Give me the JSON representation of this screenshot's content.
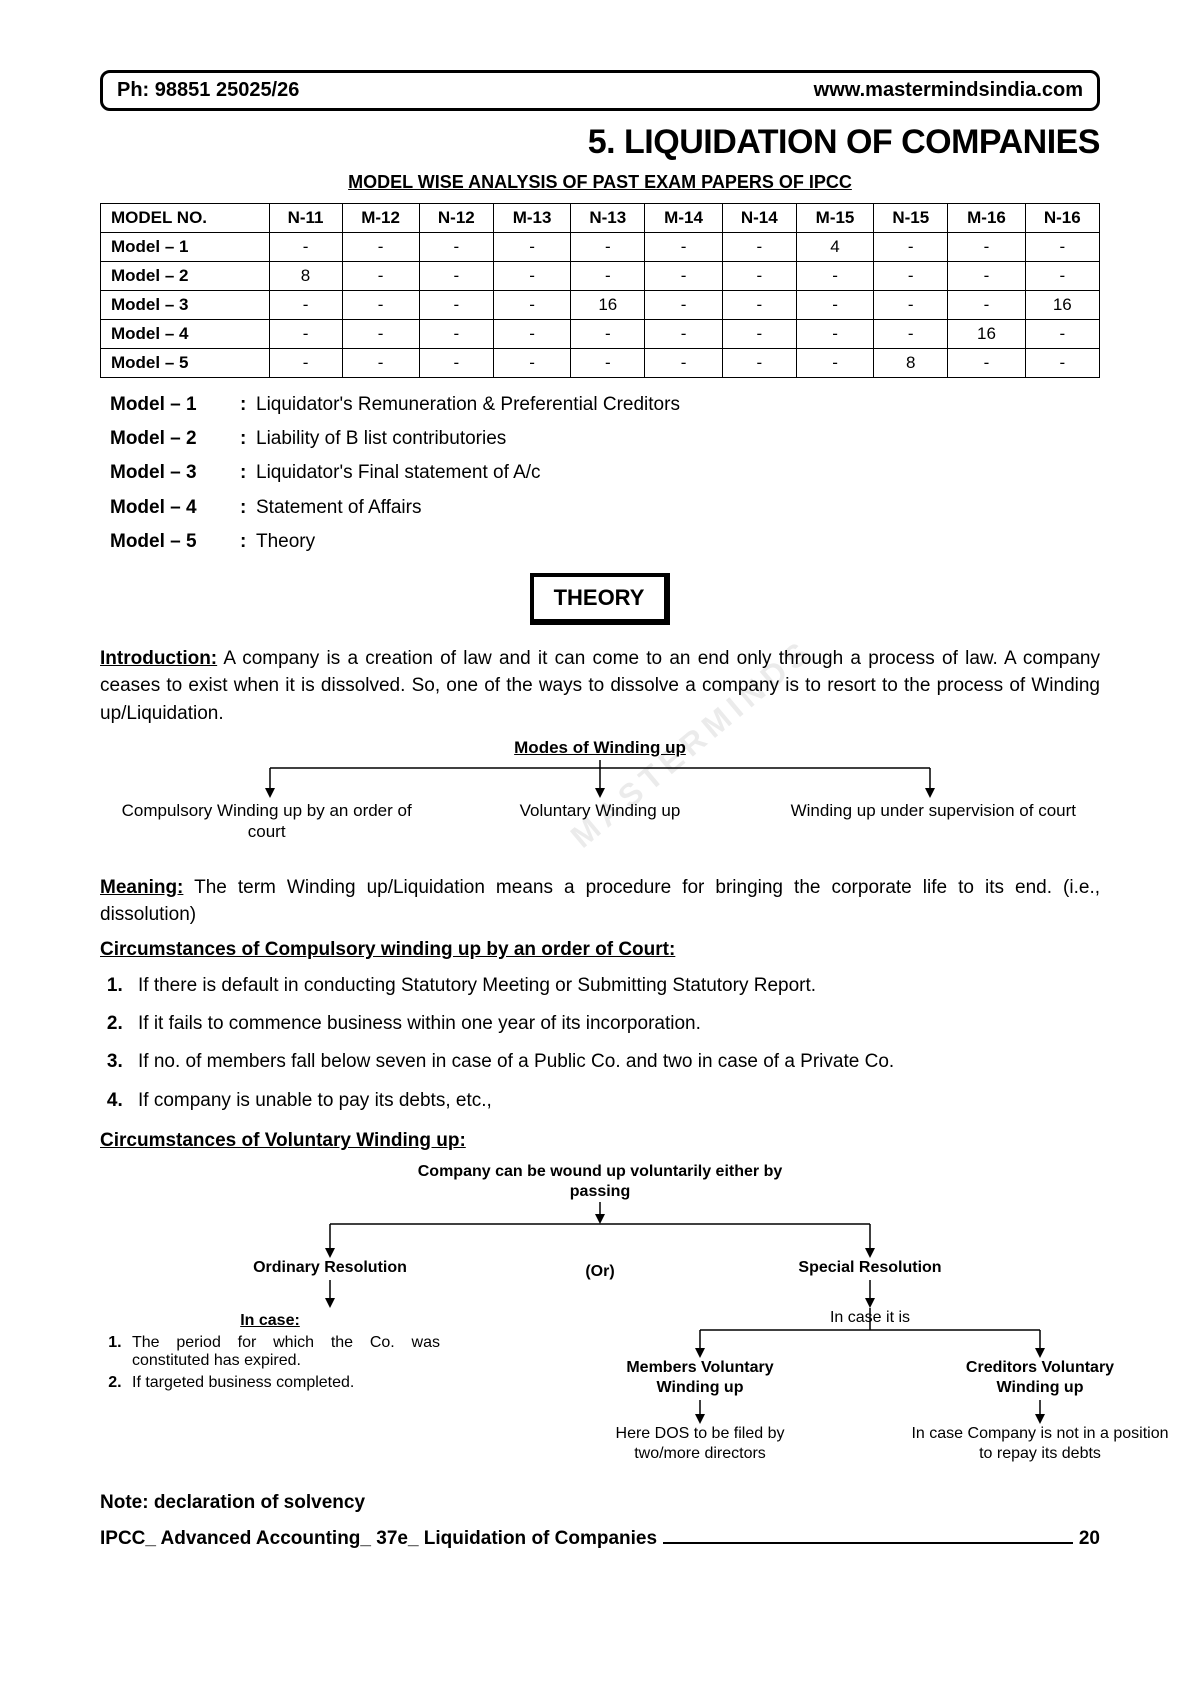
{
  "header": {
    "phone": "Ph: 98851 25025/26",
    "site": "www.mastermindsindia.com"
  },
  "chapter_title": "5. LIQUIDATION OF COMPANIES",
  "subtitle": "MODEL WISE ANALYSIS OF PAST EXAM PAPERS OF IPCC",
  "table": {
    "columns": [
      "MODEL NO.",
      "N-11",
      "M-12",
      "N-12",
      "M-13",
      "N-13",
      "M-14",
      "N-14",
      "M-15",
      "N-15",
      "M-16",
      "N-16"
    ],
    "rows": [
      [
        "Model – 1",
        "-",
        "-",
        "-",
        "-",
        "-",
        "-",
        "-",
        "4",
        "-",
        "-",
        "-"
      ],
      [
        "Model – 2",
        "8",
        "-",
        "-",
        "-",
        "-",
        "-",
        "-",
        "-",
        "-",
        "-",
        "-"
      ],
      [
        "Model – 3",
        "-",
        "-",
        "-",
        "-",
        "16",
        "-",
        "-",
        "-",
        "-",
        "-",
        "16"
      ],
      [
        "Model – 4",
        "-",
        "-",
        "-",
        "-",
        "-",
        "-",
        "-",
        "-",
        "-",
        "16",
        "-"
      ],
      [
        "Model – 5",
        "-",
        "-",
        "-",
        "-",
        "-",
        "-",
        "-",
        "-",
        "8",
        "-",
        "-"
      ]
    ]
  },
  "model_descriptions": [
    {
      "label": "Model – 1",
      "desc": "Liquidator's Remuneration & Preferential Creditors"
    },
    {
      "label": "Model – 2",
      "desc": "Liability of B list contributories"
    },
    {
      "label": "Model – 3",
      "desc": "Liquidator's Final statement of A/c"
    },
    {
      "label": "Model – 4",
      "desc": "Statement of Affairs"
    },
    {
      "label": "Model – 5",
      "desc": "Theory"
    }
  ],
  "theory_label": "THEORY",
  "intro": {
    "lead": "Introduction:",
    "text": " A company is a creation of law and it can come to an end only through a process of law. A company ceases to exist when it is dissolved. So, one of the ways to dissolve a company is to resort to the process of Winding up/Liquidation."
  },
  "diagram1": {
    "title": "Modes of Winding up",
    "branches": [
      "Compulsory Winding up by an order of court",
      "Voluntary Winding up",
      "Winding up under supervision of court"
    ]
  },
  "meaning": {
    "lead": "Meaning:",
    "text": " The term Winding up/Liquidation means a procedure for bringing the corporate life to its end.  (i.e., dissolution)"
  },
  "circ_comp_head": "Circumstances of Compulsory winding up by an order of Court:",
  "circ_comp_items": [
    "If there is default in conducting Statutory Meeting or Submitting Statutory Report.",
    "If it fails to commence business within one year of its incorporation.",
    "If no. of members fall below seven in case of a Public Co. and two in case of a Private Co.",
    "If company is unable to pay its debts, etc.,"
  ],
  "circ_vol_head": "Circumstances of Voluntary Winding up:",
  "diagram2": {
    "top": "Company can be wound up voluntarily either by passing",
    "ordinary": "Ordinary Resolution",
    "or": "(Or)",
    "special": "Special Resolution",
    "incase_head": "In case:",
    "incase_items": [
      "The period for which the Co. was constituted has expired.",
      "If targeted business completed."
    ],
    "incase_it_is": "In case it is",
    "members": "Members Voluntary Winding up",
    "members_sub": "Here DOS to be filed by two/more directors",
    "creditors": "Creditors Voluntary Winding up",
    "creditors_sub": "In case Company is not in a position to repay its debts"
  },
  "note": "Note: declaration of solvency",
  "footer": {
    "left": "IPCC_ Advanced Accounting_ 37e_ Liquidation of Companies",
    "page": "20"
  },
  "watermark": "MASTERMINDS"
}
